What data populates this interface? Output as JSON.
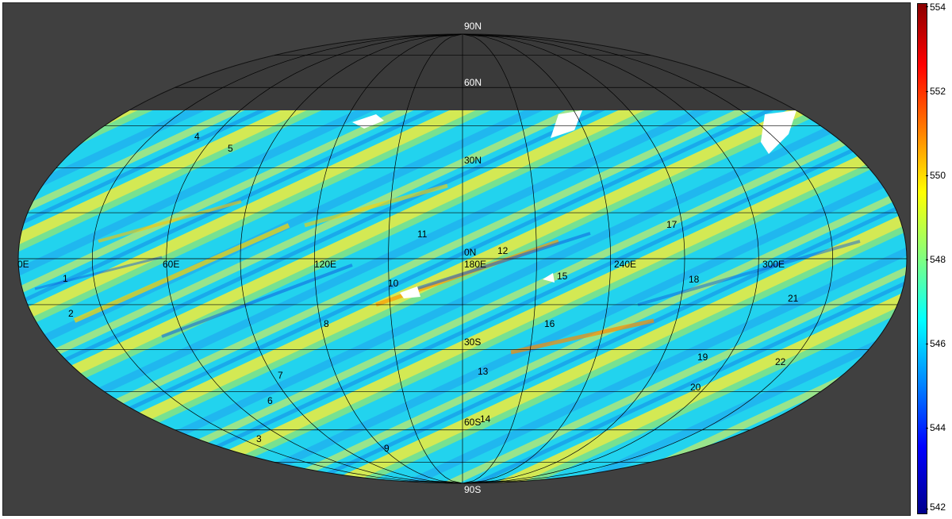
{
  "map": {
    "projection": "Mollweide",
    "background_color": "#404040",
    "data_coverage_lat_range": [
      -90,
      43
    ],
    "lon_labels": [
      "0E",
      "60E",
      "120E",
      "180E",
      "240E",
      "300E"
    ],
    "lat_labels": [
      "90N",
      "60N",
      "30N",
      "0N",
      "30S",
      "60S",
      "90S"
    ],
    "feature_labels": [
      "1",
      "2",
      "3",
      "4",
      "5",
      "6",
      "7",
      "8",
      "9",
      "10",
      "11",
      "12",
      "13",
      "14",
      "15",
      "16",
      "17",
      "18",
      "19",
      "20",
      "21",
      "22"
    ]
  },
  "colorbar": {
    "min": 542,
    "max": 554,
    "ticks": [
      "554",
      "552",
      "550",
      "548",
      "546",
      "544",
      "542"
    ],
    "colormap": "jet",
    "colors": [
      "#8b0000",
      "#ff0000",
      "#ff8000",
      "#ffff00",
      "#80ff80",
      "#00ffff",
      "#0080ff",
      "#0000ff",
      "#00008b"
    ]
  }
}
